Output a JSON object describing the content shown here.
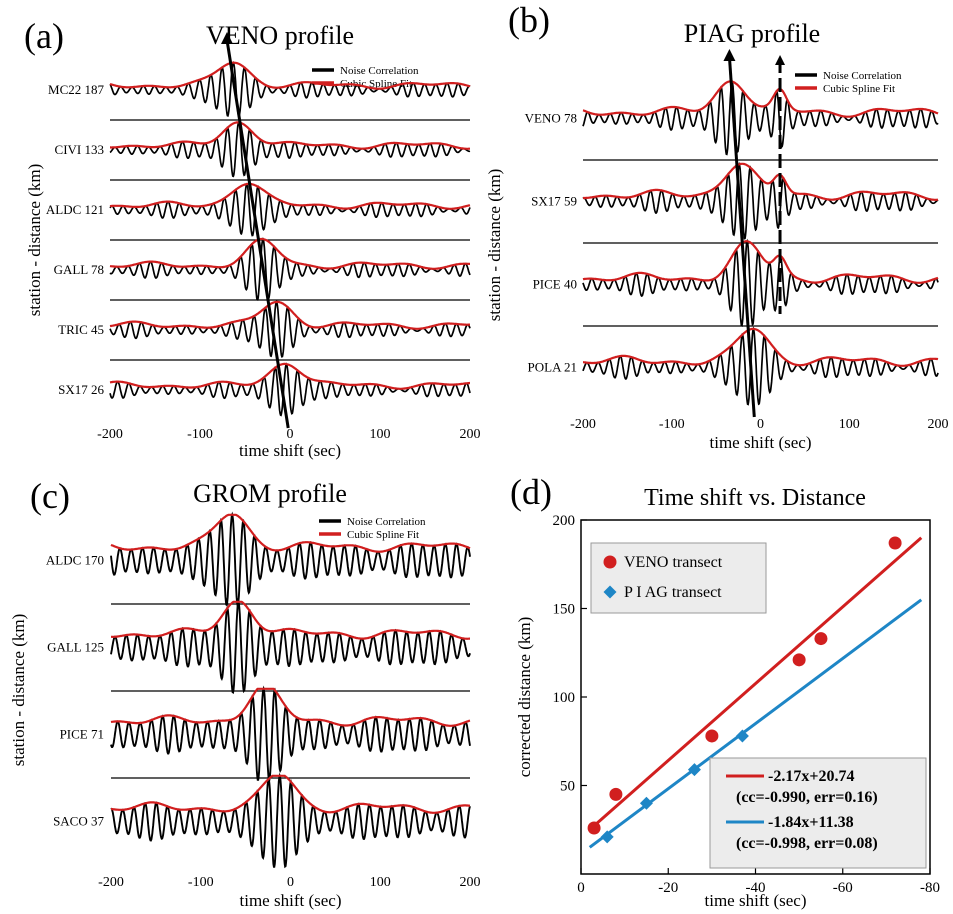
{
  "colors": {
    "black": "#000000",
    "red": "#d11f1f",
    "blue": "#1e86c6",
    "legend_bg": "#ececec"
  },
  "chart_data": [
    {
      "id": "a",
      "panel_label": "(a)",
      "title": "VENO profile",
      "type": "line",
      "xlabel": "time shift (sec)",
      "ylabel": "station - distance (km)",
      "xlim": [
        -200,
        200
      ],
      "xticks": [
        "-200",
        "-100",
        "0",
        "100",
        "200"
      ],
      "legend": [
        "Noise Correlation",
        "Cubic Spline Fit"
      ],
      "traces": [
        {
          "label": "MC22 187",
          "peaks": [
            -63
          ]
        },
        {
          "label": "CIVI 133",
          "peaks": [
            -57
          ]
        },
        {
          "label": "ALDC 121",
          "peaks": [
            -48
          ]
        },
        {
          "label": "GALL 78",
          "peaks": [
            -30
          ]
        },
        {
          "label": "TRIC 45",
          "peaks": [
            -15
          ]
        },
        {
          "label": "SX17 26",
          "peaks": [
            -4
          ]
        }
      ],
      "arrow_times": [
        -70,
        -2
      ]
    },
    {
      "id": "b",
      "panel_label": "(b)",
      "title": "PIAG profile",
      "type": "line",
      "xlabel": "time shift (sec)",
      "ylabel": "station - distance (km)",
      "xlim": [
        -200,
        200
      ],
      "xticks": [
        "-200",
        "-100",
        "0",
        "100",
        "200"
      ],
      "legend": [
        "Noise Correlation",
        "Cubic Spline Fit"
      ],
      "traces": [
        {
          "label": "VENO 78",
          "peaks": [
            -32,
            22
          ]
        },
        {
          "label": "SX17 59",
          "peaks": [
            -24,
            22
          ]
        },
        {
          "label": "PICE 40",
          "peaks": [
            -15,
            22
          ]
        },
        {
          "label": "POLA 21",
          "peaks": [
            -8
          ]
        }
      ],
      "arrow_times": [
        -35,
        -7
      ]
    },
    {
      "id": "c",
      "panel_label": "(c)",
      "title": "GROM profile",
      "type": "line",
      "xlabel": "time shift (sec)",
      "ylabel": "station - distance (km)",
      "xlim": [
        -200,
        200
      ],
      "xticks": [
        "-200",
        "-100",
        "0",
        "100",
        "200"
      ],
      "legend": [
        "Noise Correlation",
        "Cubic Spline Fit"
      ],
      "traces": [
        {
          "label": "ALDC 170",
          "peaks": [
            -65
          ]
        },
        {
          "label": "GALL 125",
          "peaks": [
            -58
          ]
        },
        {
          "label": "PICE 71",
          "peaks": [
            -30
          ]
        },
        {
          "label": "SACO 37",
          "peaks": [
            -12
          ]
        }
      ]
    },
    {
      "id": "d",
      "panel_label": "(d)",
      "title": "Time shift vs. Distance",
      "type": "scatter",
      "xlabel": "time shift (sec)",
      "ylabel": "corrected distance (km)",
      "xlim": [
        0,
        -80
      ],
      "ylim": [
        0,
        200
      ],
      "xticks": [
        "0",
        "-20",
        "-40",
        "-60",
        "-80"
      ],
      "yticks": [
        "50",
        "100",
        "150",
        "200"
      ],
      "series": [
        {
          "name": "VENO transect",
          "marker": "circle",
          "x": [
            -3,
            -8,
            -30,
            -50,
            -55,
            -72
          ],
          "y": [
            26,
            45,
            78,
            121,
            133,
            187
          ],
          "fit": {
            "slope": -2.17,
            "intercept": 20.74,
            "x_range": [
              -2,
              -78
            ]
          },
          "fit_label": "-2.17x+20.74",
          "fit_stats": "(cc=-0.990, err=0.16)"
        },
        {
          "name": "P I AG transect",
          "marker": "diamond",
          "x": [
            -6,
            -15,
            -26,
            -37
          ],
          "y": [
            21,
            40,
            59,
            78
          ],
          "fit": {
            "slope": -1.84,
            "intercept": 11.38,
            "x_range": [
              -2,
              -78
            ]
          },
          "fit_label": "-1.84x+11.38",
          "fit_stats": "(cc=-0.998, err=0.08)"
        }
      ]
    }
  ]
}
